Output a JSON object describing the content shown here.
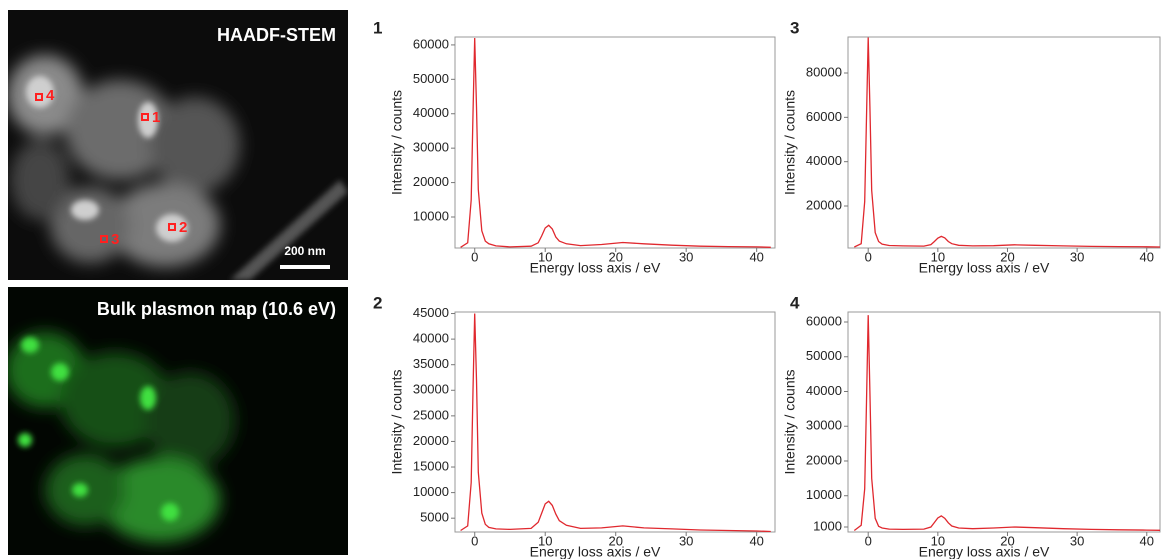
{
  "images": [
    {
      "title": "HAADF-STEM",
      "scale_bar": "200 nm",
      "markers": [
        "1",
        "2",
        "3",
        "4"
      ]
    },
    {
      "title": "Bulk plasmon map (10.6 eV)"
    }
  ],
  "chart_data": [
    {
      "type": "line",
      "title": "1",
      "xlabel": "Energy loss axis / eV",
      "ylabel": "Intensity / counts",
      "color": "#e0282e",
      "x": [
        -2,
        -1,
        -0.5,
        -0.25,
        0,
        0.25,
        0.5,
        1,
        1.5,
        2,
        3,
        5,
        8,
        9,
        9.5,
        10,
        10.5,
        11,
        11.5,
        12,
        13,
        15,
        18,
        21,
        24,
        28,
        32,
        36,
        40,
        42
      ],
      "values": [
        1200,
        2500,
        15000,
        40000,
        62000,
        42000,
        18000,
        6000,
        3000,
        2200,
        1600,
        1300,
        1500,
        2500,
        4500,
        6800,
        7600,
        6500,
        4200,
        3000,
        2200,
        1700,
        2000,
        2600,
        2200,
        1800,
        1500,
        1400,
        1300,
        1200
      ],
      "xlim": [
        -2.8,
        42.6
      ],
      "ylim": [
        990,
        62300
      ],
      "xticks": [
        0,
        10,
        20,
        30,
        40
      ],
      "yticks": [
        10000,
        20000,
        30000,
        40000,
        50000,
        60000
      ]
    },
    {
      "type": "line",
      "title": "3",
      "xlabel": "Energy loss axis / eV",
      "ylabel": "Intensity / counts",
      "color": "#e0282e",
      "x": [
        -2,
        -1,
        -0.5,
        -0.25,
        0,
        0.25,
        0.5,
        1,
        1.5,
        2,
        3,
        5,
        8,
        9,
        9.5,
        10,
        10.5,
        11,
        11.5,
        12,
        13,
        15,
        18,
        21,
        24,
        28,
        32,
        36,
        40,
        42
      ],
      "values": [
        1500,
        3000,
        22000,
        60000,
        96000,
        65000,
        27000,
        8000,
        4000,
        2800,
        2200,
        2000,
        1900,
        2600,
        4000,
        5500,
        6300,
        5600,
        4000,
        3000,
        2300,
        2000,
        2100,
        2500,
        2300,
        2000,
        1800,
        1700,
        1600,
        1500
      ],
      "xlim": [
        -2.9,
        41.9
      ],
      "ylim": [
        1060,
        96240
      ],
      "xticks": [
        0,
        10,
        20,
        30,
        40
      ],
      "yticks": [
        20000,
        40000,
        60000,
        80000
      ]
    },
    {
      "type": "line",
      "title": "2",
      "xlabel": "Energy loss axis / eV",
      "ylabel": "Intensity / counts",
      "color": "#e0282e",
      "x": [
        -2,
        -1,
        -0.5,
        -0.25,
        0,
        0.25,
        0.5,
        1,
        1.5,
        2,
        3,
        5,
        8,
        9,
        9.5,
        10,
        10.5,
        11,
        11.5,
        12,
        13,
        15,
        18,
        21,
        24,
        28,
        32,
        36,
        40,
        42
      ],
      "values": [
        2600,
        3500,
        12000,
        30000,
        45000,
        32000,
        14000,
        6000,
        3800,
        3200,
        2900,
        2800,
        3000,
        4200,
        6000,
        7800,
        8300,
        7500,
        5800,
        4500,
        3600,
        3000,
        3100,
        3500,
        3100,
        2900,
        2700,
        2600,
        2500,
        2400
      ],
      "xlim": [
        -2.8,
        42.6
      ],
      "ylim": [
        2300,
        45300
      ],
      "xticks": [
        0,
        10,
        20,
        30,
        40
      ],
      "yticks": [
        5000,
        10000,
        15000,
        20000,
        25000,
        30000,
        35000,
        40000,
        45000
      ]
    },
    {
      "type": "line",
      "title": "4",
      "xlabel": "Energy loss axis / eV",
      "ylabel": "Intensity / counts",
      "color": "#e0282e",
      "x": [
        -2,
        -1,
        -0.5,
        -0.25,
        0,
        0.25,
        0.5,
        1,
        1.5,
        2,
        3,
        5,
        8,
        9,
        9.5,
        10,
        10.5,
        11,
        11.5,
        12,
        13,
        15,
        18,
        21,
        24,
        28,
        32,
        36,
        40,
        42
      ],
      "values": [
        0,
        1500,
        12000,
        37000,
        62000,
        40000,
        15000,
        3500,
        1200,
        700,
        400,
        300,
        400,
        1000,
        2300,
        3600,
        4200,
        3500,
        2200,
        1300,
        700,
        500,
        700,
        1000,
        800,
        500,
        300,
        200,
        100,
        50
      ],
      "xlim": [
        -2.9,
        41.9
      ],
      "ylim": [
        -440,
        62880
      ],
      "xticks": [
        0,
        10,
        20,
        30,
        40
      ],
      "yticks": [
        1000,
        10000,
        20000,
        30000,
        40000,
        50000,
        60000
      ]
    }
  ]
}
